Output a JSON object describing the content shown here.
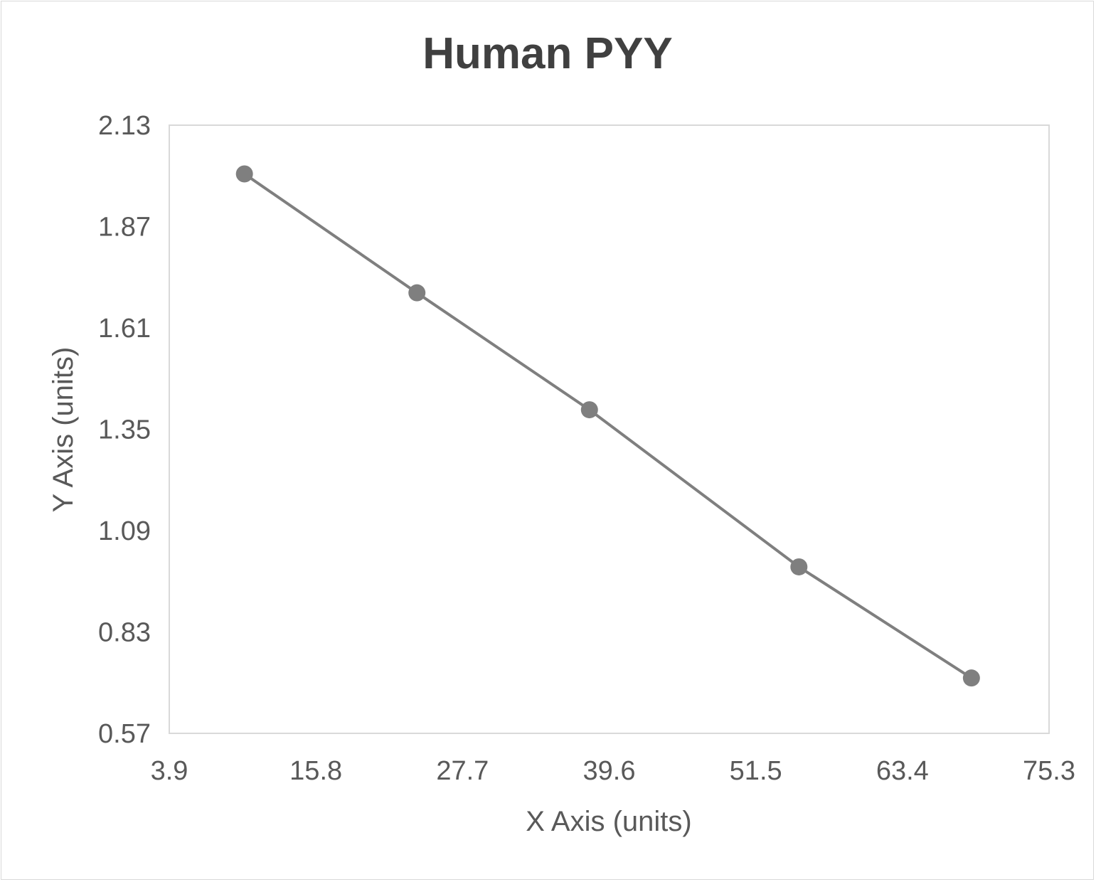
{
  "chart_data": {
    "type": "line",
    "title": "Human PYY",
    "xlabel": "X Axis (units)",
    "ylabel": "Y Axis (units)",
    "xlim": [
      3.9,
      75.3
    ],
    "ylim": [
      0.57,
      2.13
    ],
    "x_ticks": [
      "3.9",
      "15.8",
      "27.7",
      "39.6",
      "51.5",
      "63.4",
      "75.3"
    ],
    "y_ticks": [
      "0.57",
      "0.83",
      "1.09",
      "1.35",
      "1.61",
      "1.87",
      "2.13"
    ],
    "grid": false,
    "legend": "none",
    "series": [
      {
        "x": [
          10,
          24,
          38,
          55,
          69
        ],
        "y": [
          2.005,
          1.7,
          1.4,
          0.997,
          0.712
        ]
      }
    ],
    "colors": {
      "series": "#7f7f7f",
      "plot_border": "#d9d9d9",
      "text": "#595959",
      "title": "#404040"
    }
  }
}
